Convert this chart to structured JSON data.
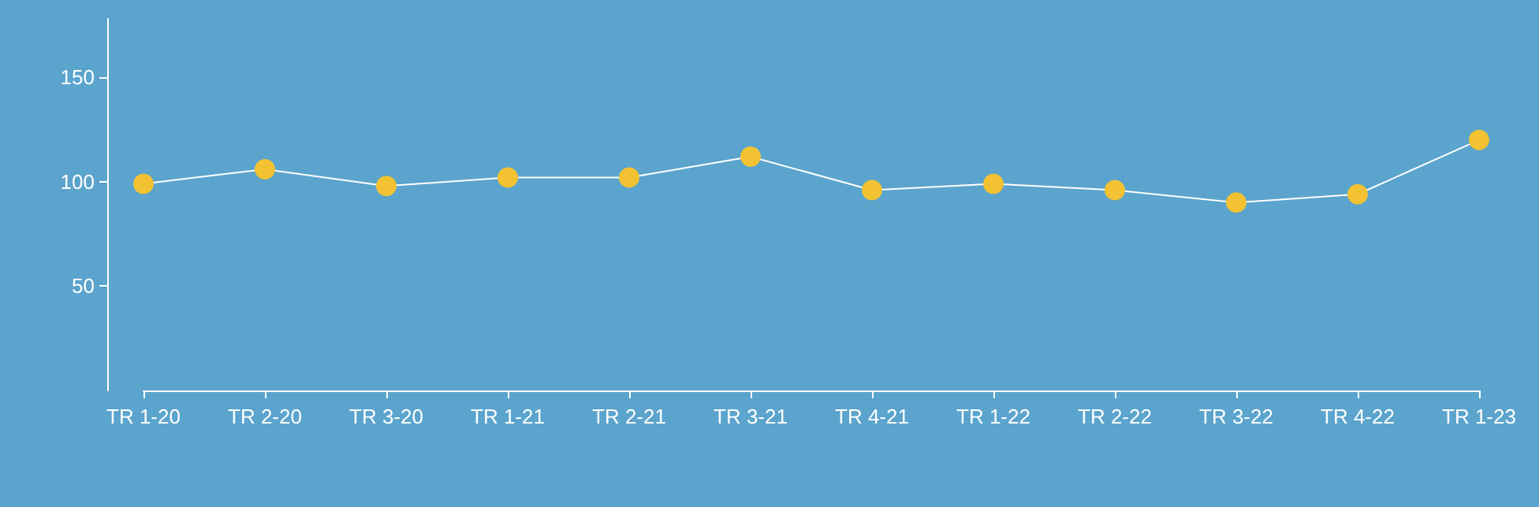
{
  "chart_data": {
    "type": "line",
    "categories": [
      "TR 1-20",
      "TR 2-20",
      "TR 3-20",
      "TR 1-21",
      "TR 2-21",
      "TR 3-21",
      "TR 4-21",
      "TR 1-22",
      "TR 2-22",
      "TR 3-22",
      "TR 4-22",
      "TR 1-23"
    ],
    "series": [
      {
        "color": "#f2c232",
        "values": [
          99,
          106,
          98,
          102,
          102,
          112,
          96,
          99,
          96,
          90,
          94,
          120
        ]
      }
    ],
    "ylim": [
      0,
      178
    ],
    "yticks": [
      50,
      100,
      150
    ],
    "grid": false,
    "marker": "circle",
    "line_style": "solid"
  }
}
